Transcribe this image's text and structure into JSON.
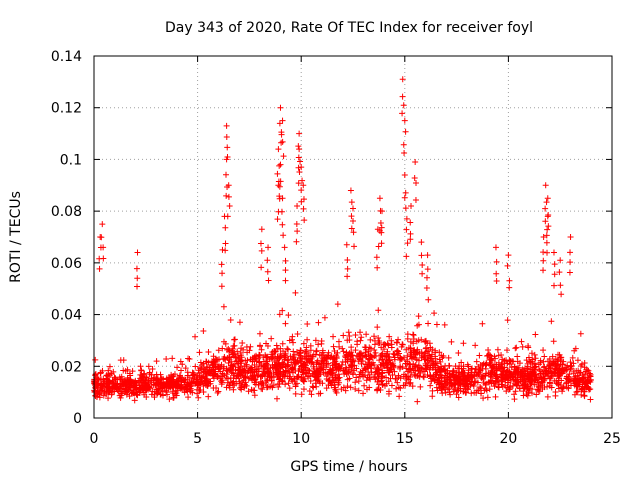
{
  "chart_data": {
    "type": "scatter",
    "title": "Day 343 of 2020, Rate Of TEC Index for receiver foyl",
    "xlabel": "GPS time / hours",
    "ylabel": "ROTI / TECUs",
    "xlim": [
      0,
      25
    ],
    "ylim": [
      0,
      0.14
    ],
    "x_ticks": [
      0,
      5,
      10,
      15,
      20,
      25
    ],
    "y_ticks": [
      0,
      0.02,
      0.04,
      0.06,
      0.08,
      0.1,
      0.12,
      0.14
    ],
    "x_tick_labels": [
      "0",
      "5",
      "10",
      "15",
      "20",
      "25"
    ],
    "y_tick_labels": [
      "0",
      "0.02",
      "0.04",
      "0.06",
      "0.08",
      "0.1",
      "0.12",
      "0.14"
    ],
    "grid": true,
    "marker": "+",
    "color": "#ff0000",
    "series": [
      {
        "name": "ROTI",
        "x_range_hours": [
          0,
          24
        ],
        "typical_band": [
          0.008,
          0.035
        ],
        "notable_points": [
          {
            "x": 0.3,
            "y": 0.07
          },
          {
            "x": 0.4,
            "y": 0.075
          },
          {
            "x": 2.1,
            "y": 0.064
          },
          {
            "x": 6.4,
            "y": 0.113
          },
          {
            "x": 6.4,
            "y": 0.1
          },
          {
            "x": 6.5,
            "y": 0.09
          },
          {
            "x": 6.3,
            "y": 0.078
          },
          {
            "x": 6.2,
            "y": 0.065
          },
          {
            "x": 8.1,
            "y": 0.073
          },
          {
            "x": 8.4,
            "y": 0.066
          },
          {
            "x": 8.9,
            "y": 0.104
          },
          {
            "x": 9.0,
            "y": 0.12
          },
          {
            "x": 9.1,
            "y": 0.115
          },
          {
            "x": 9.0,
            "y": 0.098
          },
          {
            "x": 8.9,
            "y": 0.09
          },
          {
            "x": 9.1,
            "y": 0.085
          },
          {
            "x": 9.2,
            "y": 0.066
          },
          {
            "x": 9.9,
            "y": 0.11
          },
          {
            "x": 9.9,
            "y": 0.104
          },
          {
            "x": 10.0,
            "y": 0.097
          },
          {
            "x": 10.1,
            "y": 0.09
          },
          {
            "x": 9.8,
            "y": 0.082
          },
          {
            "x": 12.4,
            "y": 0.088
          },
          {
            "x": 12.5,
            "y": 0.081
          },
          {
            "x": 12.2,
            "y": 0.067
          },
          {
            "x": 13.8,
            "y": 0.085
          },
          {
            "x": 13.9,
            "y": 0.08
          },
          {
            "x": 13.7,
            "y": 0.073
          },
          {
            "x": 14.9,
            "y": 0.131
          },
          {
            "x": 15.0,
            "y": 0.115
          },
          {
            "x": 15.0,
            "y": 0.094
          },
          {
            "x": 15.3,
            "y": 0.082
          },
          {
            "x": 15.5,
            "y": 0.099
          },
          {
            "x": 15.1,
            "y": 0.077
          },
          {
            "x": 15.8,
            "y": 0.068
          },
          {
            "x": 16.1,
            "y": 0.063
          },
          {
            "x": 19.4,
            "y": 0.066
          },
          {
            "x": 20.0,
            "y": 0.063
          },
          {
            "x": 21.8,
            "y": 0.09
          },
          {
            "x": 21.9,
            "y": 0.085
          },
          {
            "x": 21.9,
            "y": 0.078
          },
          {
            "x": 21.7,
            "y": 0.07
          },
          {
            "x": 22.2,
            "y": 0.064
          },
          {
            "x": 22.5,
            "y": 0.061
          },
          {
            "x": 23.0,
            "y": 0.07
          }
        ]
      }
    ]
  }
}
